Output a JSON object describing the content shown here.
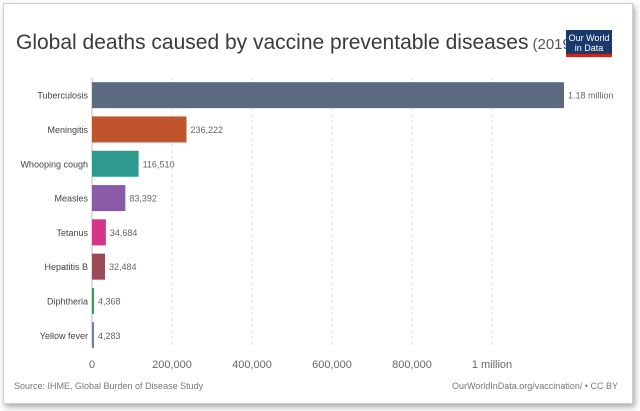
{
  "header": {
    "title": "Global deaths caused by vaccine preventable diseases",
    "year": "(2019)",
    "logo_line1": "Our World",
    "logo_line2": "in Data"
  },
  "footer": {
    "source": "Source: IHME, Global Burden of Disease Study",
    "credit": "OurWorldInData.org/vaccination/ • CC BY"
  },
  "chart_data": {
    "type": "bar",
    "orientation": "horizontal",
    "categories": [
      "Tuberculosis",
      "Meningitis",
      "Whooping cough",
      "Measles",
      "Tetanus",
      "Hepatitis B",
      "Diphtheria",
      "Yellow fever"
    ],
    "values": [
      1180000,
      236222,
      116510,
      83392,
      34684,
      32484,
      4368,
      4283
    ],
    "value_labels": [
      "1.18 million",
      "236,222",
      "116,510",
      "83,392",
      "34,684",
      "32,484",
      "4,368",
      "4,283"
    ],
    "colors": [
      "#5b6b7f",
      "#c0542c",
      "#2e9a8e",
      "#8a5aa8",
      "#d6338a",
      "#9a4a55",
      "#3a9a5c",
      "#6b7fa8"
    ],
    "xlim": [
      0,
      1180000
    ],
    "xticks": [
      0,
      200000,
      400000,
      600000,
      800000,
      1000000
    ],
    "xtick_labels": [
      "0",
      "200,000",
      "400,000",
      "600,000",
      "800,000",
      "1 million"
    ],
    "grid": true
  }
}
